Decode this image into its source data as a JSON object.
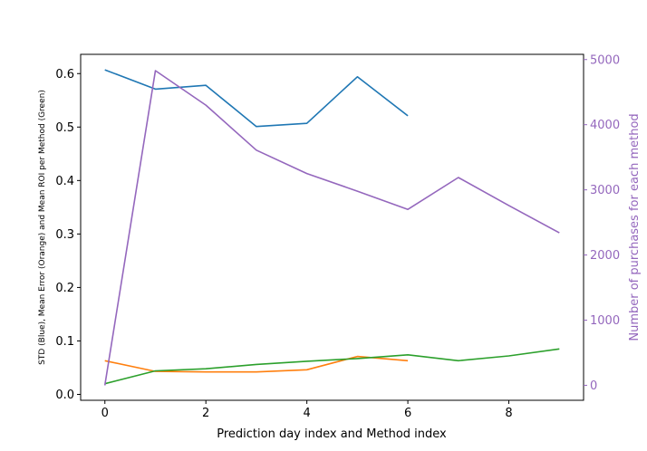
{
  "chart_data": {
    "type": "line",
    "xlabel": "Prediction day index and Method index",
    "ylabel_left": "STD (Blue), Mean Error (Orange) and Mean ROI per Method (Green)",
    "ylabel_right": "Number of purchases for each method",
    "xlim": [
      -0.48,
      9.48
    ],
    "ylim_left": [
      -0.011,
      0.636
    ],
    "ylim_right": [
      -230,
      5080
    ],
    "x_ticks": [
      0,
      2,
      4,
      6,
      8
    ],
    "y_ticks_left": [
      0.0,
      0.1,
      0.2,
      0.3,
      0.4,
      0.5,
      0.6
    ],
    "y_ticks_right": [
      0,
      1000,
      2000,
      3000,
      4000,
      5000
    ],
    "x_tick_labels": [
      "0",
      "2",
      "4",
      "6",
      "8"
    ],
    "y_tick_labels_left": [
      "0.0",
      "0.1",
      "0.2",
      "0.3",
      "0.4",
      "0.5",
      "0.6"
    ],
    "y_tick_labels_right": [
      "0",
      "1000",
      "2000",
      "3000",
      "4000",
      "5000"
    ],
    "right_axis_color": "#9467bd",
    "grid": false,
    "series": [
      {
        "color": "#1f77b4",
        "axis": "left",
        "x": [
          0,
          1,
          2,
          3,
          4,
          5,
          6
        ],
        "values": [
          0.607,
          0.571,
          0.578,
          0.501,
          0.507,
          0.594,
          0.521
        ]
      },
      {
        "color": "#ff7f0e",
        "axis": "left",
        "x": [
          0,
          1,
          2,
          3,
          4,
          5,
          6
        ],
        "values": [
          0.063,
          0.043,
          0.042,
          0.042,
          0.046,
          0.071,
          0.063
        ]
      },
      {
        "color": "#2ca02c",
        "axis": "left",
        "x": [
          0,
          1,
          2,
          3,
          4,
          5,
          6,
          7,
          8,
          9
        ],
        "values": [
          0.02,
          0.044,
          0.048,
          0.056,
          0.062,
          0.067,
          0.074,
          0.063,
          0.072,
          0.085
        ]
      },
      {
        "color": "#9467bd",
        "axis": "right",
        "x": [
          0,
          1,
          2,
          3,
          4,
          5,
          6,
          7,
          8,
          9
        ],
        "values": [
          0,
          4830,
          4300,
          3610,
          3250,
          2980,
          2700,
          3190,
          2760,
          2340
        ]
      }
    ]
  }
}
